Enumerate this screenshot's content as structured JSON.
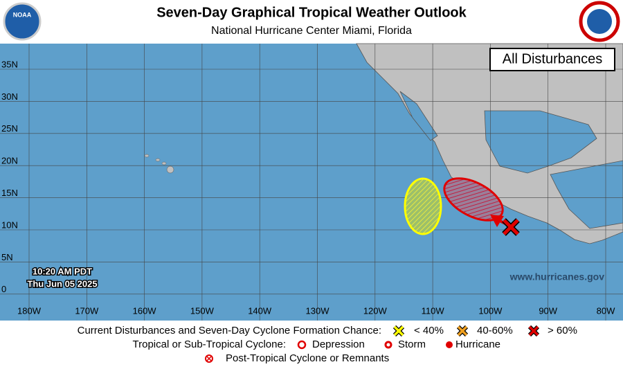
{
  "header": {
    "title": "Seven-Day Graphical Tropical Weather Outlook",
    "subtitle": "National Hurricane Center  Miami, Florida",
    "left_logo": "NOAA"
  },
  "map": {
    "badge": "All Disturbances",
    "lat_labels": [
      "35N",
      "30N",
      "25N",
      "20N",
      "15N",
      "10N",
      "5N",
      "0"
    ],
    "lon_labels": [
      "180W",
      "170W",
      "160W",
      "150W",
      "140W",
      "130W",
      "120W",
      "110W",
      "100W",
      "90W",
      "80W"
    ],
    "timestamp": [
      "10:20 AM PDT",
      "Thu Jun 05 2025"
    ],
    "website": "www.hurricanes.gov"
  },
  "legend": {
    "line1": {
      "label": "Current Disturbances and Seven-Day Cyclone Formation Chance:",
      "items": [
        "< 40%",
        "40-60%",
        "> 60%"
      ]
    },
    "line2": {
      "label": "Tropical or Sub-Tropical Cyclone:",
      "items": [
        "Depression",
        "Storm",
        "Hurricane"
      ]
    },
    "line3": {
      "items": [
        "Post-Tropical Cyclone or Remnants"
      ]
    }
  }
}
